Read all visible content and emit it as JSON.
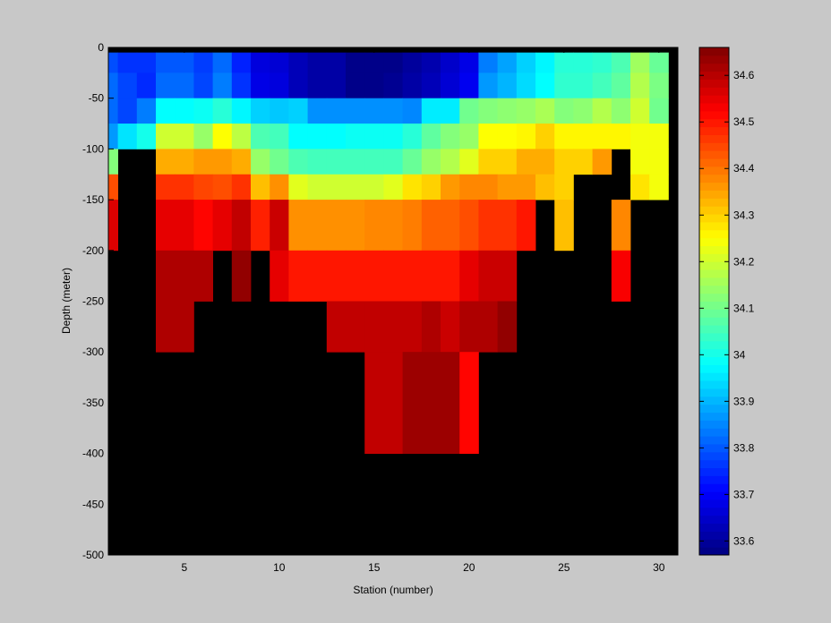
{
  "chart_data": {
    "type": "heatmap",
    "title": "",
    "xlabel": "Station (number)",
    "ylabel": "Depth (meter)",
    "xlim": [
      1,
      31
    ],
    "ylim": [
      -500,
      0
    ],
    "x_ticks": [
      5,
      10,
      15,
      20,
      25,
      30
    ],
    "y_ticks": [
      0,
      -50,
      -100,
      -150,
      -200,
      -250,
      -300,
      -350,
      -400,
      -450,
      -500
    ],
    "colorbar": {
      "range": [
        33.57,
        34.66
      ],
      "ticks": [
        33.6,
        33.7,
        33.8,
        33.9,
        34,
        34.1,
        34.2,
        34.3,
        34.4,
        34.5,
        34.6
      ],
      "tick_labels": [
        "33.6",
        "33.7",
        "33.8",
        "33.9",
        "34",
        "34.1",
        "34.2",
        "34.3",
        "34.4",
        "34.5",
        "34.6"
      ],
      "colormap": "jet"
    },
    "missing_color": "#000000",
    "depth_bins": [
      {
        "top": 0,
        "bottom": -5
      },
      {
        "top": -5,
        "bottom": -25
      },
      {
        "top": -25,
        "bottom": -50
      },
      {
        "top": -50,
        "bottom": -75
      },
      {
        "top": -75,
        "bottom": -100
      },
      {
        "top": -100,
        "bottom": -125
      },
      {
        "top": -125,
        "bottom": -150
      },
      {
        "top": -150,
        "bottom": -200
      },
      {
        "top": -200,
        "bottom": -250
      },
      {
        "top": -250,
        "bottom": -300
      },
      {
        "top": -300,
        "bottom": -400
      },
      {
        "top": -400,
        "bottom": -500
      }
    ],
    "stations": [
      1,
      2,
      3,
      4,
      5,
      6,
      7,
      8,
      9,
      10,
      11,
      12,
      13,
      14,
      15,
      16,
      17,
      18,
      19,
      20,
      21,
      22,
      23,
      24,
      25,
      26,
      27,
      28,
      29,
      30
    ],
    "values": [
      [
        null,
        null,
        null,
        null,
        null,
        null,
        null,
        null,
        null,
        null,
        null,
        null,
        null,
        null,
        null,
        null,
        null,
        null,
        null,
        null,
        null,
        null,
        null,
        null,
        null,
        null,
        null,
        null,
        null,
        null
      ],
      [
        33.79,
        33.76,
        33.76,
        33.8,
        33.8,
        33.77,
        33.82,
        33.74,
        33.67,
        33.66,
        33.63,
        33.61,
        33.61,
        33.58,
        33.58,
        33.58,
        33.6,
        33.62,
        33.65,
        33.68,
        33.84,
        33.88,
        33.93,
        33.97,
        34.02,
        34.02,
        34.03,
        34.06,
        34.15,
        34.09
      ],
      [
        33.82,
        33.78,
        33.75,
        33.82,
        33.82,
        33.78,
        33.84,
        33.76,
        33.68,
        33.67,
        33.63,
        33.61,
        33.61,
        33.58,
        33.58,
        33.59,
        33.61,
        33.63,
        33.66,
        33.69,
        33.87,
        33.9,
        33.94,
        33.98,
        34.03,
        34.03,
        34.05,
        34.08,
        34.17,
        34.11
      ],
      [
        33.82,
        33.78,
        33.84,
        33.98,
        33.98,
        33.99,
        34.02,
        33.97,
        33.93,
        33.92,
        33.93,
        33.86,
        33.86,
        33.86,
        33.86,
        33.86,
        33.85,
        33.96,
        33.96,
        34.1,
        34.12,
        34.13,
        34.14,
        34.16,
        34.12,
        34.13,
        34.17,
        34.13,
        34.2,
        34.1
      ],
      [
        33.87,
        33.95,
        34.0,
        34.2,
        34.2,
        34.14,
        34.25,
        34.18,
        34.06,
        34.05,
        33.98,
        33.98,
        33.98,
        33.99,
        33.99,
        33.99,
        34.02,
        34.08,
        34.12,
        34.14,
        34.25,
        34.25,
        34.26,
        34.3,
        34.26,
        34.26,
        34.26,
        34.26,
        34.24,
        34.24
      ],
      [
        34.12,
        null,
        null,
        34.34,
        34.34,
        34.36,
        34.36,
        34.34,
        34.14,
        34.1,
        34.06,
        34.05,
        34.05,
        34.05,
        34.05,
        34.05,
        34.09,
        34.14,
        34.17,
        34.22,
        34.3,
        34.3,
        34.34,
        34.34,
        34.3,
        34.3,
        34.36,
        null,
        34.24,
        34.24
      ],
      [
        34.44,
        null,
        null,
        34.47,
        34.47,
        34.45,
        34.44,
        34.47,
        34.32,
        34.37,
        34.22,
        34.2,
        34.2,
        34.2,
        34.2,
        34.22,
        34.28,
        34.3,
        34.36,
        34.38,
        34.38,
        34.36,
        34.36,
        34.32,
        34.3,
        null,
        null,
        null,
        34.28,
        34.24
      ],
      [
        34.56,
        null,
        null,
        34.55,
        34.55,
        34.52,
        34.55,
        34.59,
        34.49,
        34.58,
        34.37,
        34.37,
        34.37,
        34.37,
        34.38,
        34.38,
        34.39,
        34.42,
        34.42,
        34.44,
        34.47,
        34.47,
        34.5,
        null,
        34.32,
        null,
        null,
        34.38,
        null,
        null
      ],
      [
        null,
        null,
        null,
        34.61,
        34.61,
        34.61,
        null,
        34.64,
        null,
        34.55,
        34.5,
        34.5,
        34.5,
        34.5,
        34.5,
        34.5,
        34.5,
        34.5,
        34.5,
        34.55,
        34.58,
        34.58,
        null,
        null,
        null,
        null,
        null,
        34.53,
        null,
        null
      ],
      [
        null,
        null,
        null,
        34.61,
        34.61,
        null,
        null,
        null,
        null,
        null,
        null,
        null,
        34.59,
        34.59,
        34.59,
        34.59,
        34.59,
        34.61,
        34.58,
        34.61,
        34.61,
        34.64,
        null,
        null,
        null,
        null,
        null,
        null,
        null,
        null
      ],
      [
        null,
        null,
        null,
        null,
        null,
        null,
        null,
        null,
        null,
        null,
        null,
        null,
        null,
        null,
        34.59,
        34.59,
        34.63,
        34.63,
        34.63,
        34.52,
        null,
        null,
        null,
        null,
        null,
        null,
        null,
        null,
        null,
        null
      ],
      [
        null,
        null,
        null,
        null,
        null,
        null,
        null,
        null,
        null,
        null,
        null,
        null,
        null,
        null,
        null,
        null,
        null,
        null,
        null,
        null,
        null,
        null,
        null,
        null,
        null,
        null,
        null,
        null,
        null,
        null
      ]
    ]
  }
}
